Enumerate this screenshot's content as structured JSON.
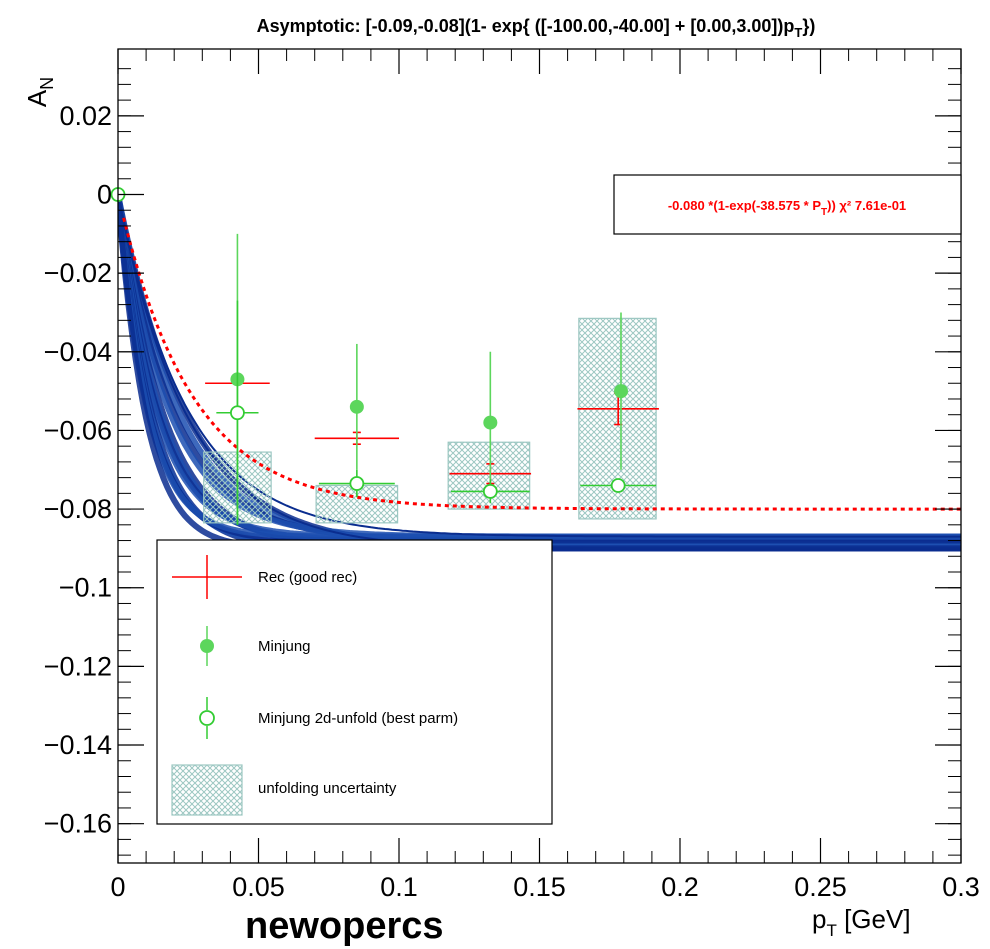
{
  "chart_data": {
    "type": "scatter",
    "title": "Asymptotic: [-0.09,-0.08](1- exp{ ([-100.00,-40.00] + [0.00,3.00])p",
    "title_sub": "T",
    "title_end": "})",
    "xlabel": "p",
    "xlabel_sub": "T",
    "xlabel_unit": " [GeV]",
    "ylabel": "A",
    "ylabel_sub": "N",
    "bottom_label": "newopercs",
    "xlim": [
      0,
      0.3
    ],
    "ylim": [
      -0.17,
      0.037
    ],
    "x_ticks": [
      0,
      0.05,
      0.1,
      0.15,
      0.2,
      0.25,
      0.3
    ],
    "x_tick_labels": [
      "0",
      "0.05",
      "0.1",
      "0.15",
      "0.2",
      "0.25",
      "0.3"
    ],
    "y_ticks": [
      0.02,
      0,
      -0.02,
      -0.04,
      -0.06,
      -0.08,
      -0.1,
      -0.12,
      -0.14,
      -0.16
    ],
    "y_tick_labels": [
      "0.02",
      "0",
      "−0.02",
      "−0.04",
      "−0.06",
      "−0.08",
      "−0.1",
      "−0.12",
      "−0.14",
      "−0.16"
    ],
    "series": [
      {
        "name": "Rec (good rec)",
        "color": "#ff0000",
        "points": [
          {
            "x": 0.0425,
            "y": -0.048,
            "xerr": 0.0115,
            "yerr": 0.0
          },
          {
            "x": 0.085,
            "y": -0.062,
            "xerr": 0.015,
            "yerr": 0.0015
          },
          {
            "x": 0.1325,
            "y": -0.071,
            "xerr": 0.0145,
            "yerr": 0.0025
          },
          {
            "x": 0.178,
            "y": -0.0545,
            "xerr": 0.0145,
            "yerr": 0.004
          }
        ]
      },
      {
        "name": "Minjung",
        "color": "#5cd65c",
        "points": [
          {
            "x": 0.0425,
            "y": -0.047,
            "yerr": 0.037
          },
          {
            "x": 0.085,
            "y": -0.054,
            "yerr": 0.016
          },
          {
            "x": 0.1325,
            "y": -0.058,
            "yerr": 0.018
          },
          {
            "x": 0.179,
            "y": -0.05,
            "yerr": 0.02
          }
        ]
      },
      {
        "name": "Minjung 2d-unfold (best parm)",
        "color": "#33cc33",
        "points": [
          {
            "x": 0.0,
            "y": 0.0,
            "xerr": 0.0,
            "yerr": 0.0
          },
          {
            "x": 0.0425,
            "y": -0.0555,
            "xerr": 0.0075,
            "yerr": 0.0285
          },
          {
            "x": 0.085,
            "y": -0.0735,
            "xerr": 0.0135,
            "yerr": 0.0035
          },
          {
            "x": 0.1325,
            "y": -0.0755,
            "xerr": 0.014,
            "yerr": 0.003
          },
          {
            "x": 0.178,
            "y": -0.074,
            "xerr": 0.0135,
            "yerr": 0.0
          }
        ]
      }
    ],
    "unfolding_uncertainty": {
      "name": "unfolding uncertainty",
      "color": "#9cc7c2",
      "boxes": [
        {
          "x0": 0.0305,
          "x1": 0.0545,
          "y0": -0.0835,
          "y1": -0.0655
        },
        {
          "x0": 0.0705,
          "x1": 0.0995,
          "y0": -0.0835,
          "y1": -0.074
        },
        {
          "x0": 0.1175,
          "x1": 0.1465,
          "y0": -0.08,
          "y1": -0.063
        },
        {
          "x0": 0.164,
          "x1": 0.1915,
          "y0": -0.0825,
          "y1": -0.0315
        }
      ]
    },
    "fit": {
      "label": "-0.080 *(1-exp(-38.575 * P",
      "label_sub": "T",
      "label_end": "))  χ² 7.61e-01",
      "color": "#ff0000",
      "A": -0.08,
      "k": 38.575
    },
    "band": {
      "color": "#0a2d8f",
      "A_min": -0.09,
      "A_max": -0.087,
      "k_min": 40,
      "k_max": 100
    },
    "legend": {
      "placement": "bottom-left",
      "entries": [
        "Rec (good rec)",
        "Minjung",
        "Minjung 2d-unfold (best parm)",
        "unfolding uncertainty"
      ]
    }
  }
}
